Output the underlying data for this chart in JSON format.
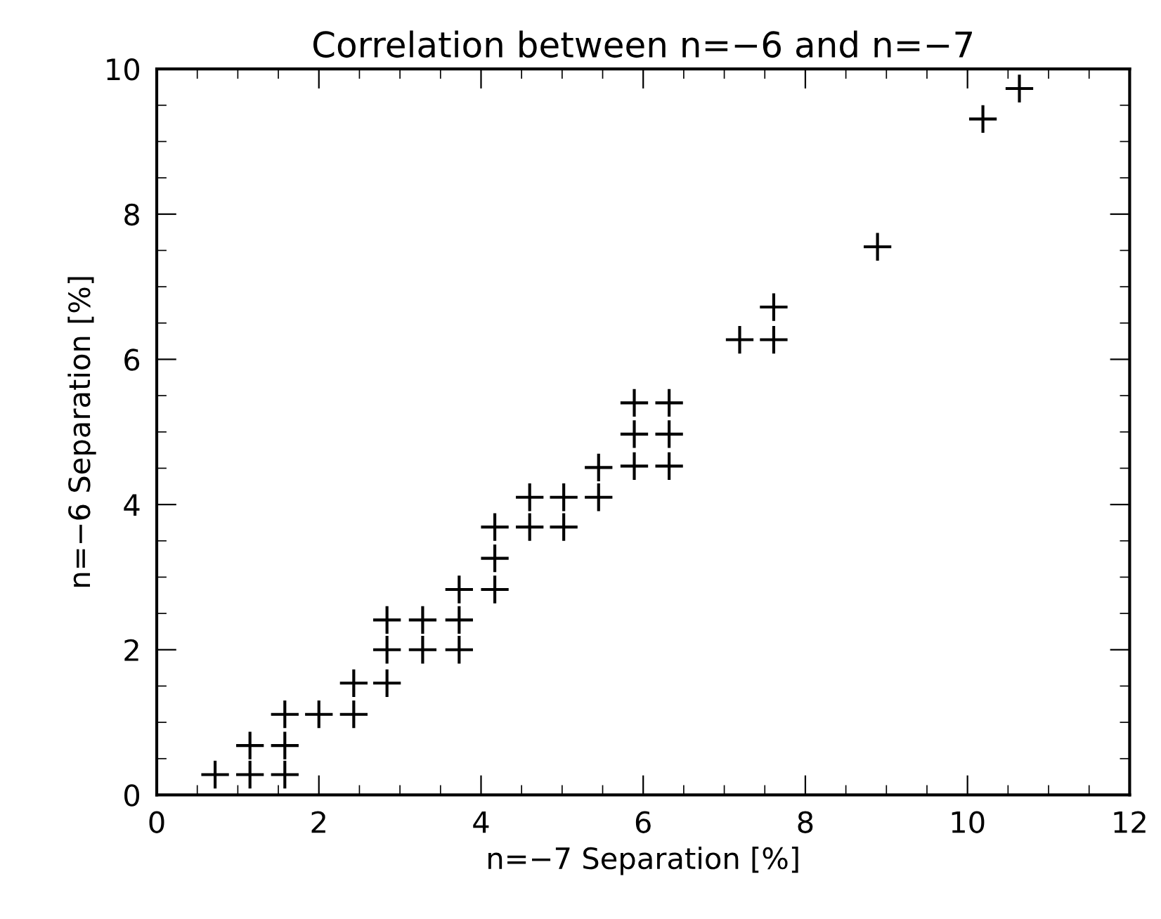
{
  "chart_data": {
    "type": "scatter",
    "title": "Correlation between n=−6 and n=−7",
    "xlabel": "n=−7 Separation [%]",
    "ylabel": "n=−6 Separation [%]",
    "x": [
      0.72,
      1.15,
      1.58,
      1.15,
      1.58,
      1.58,
      2.0,
      2.43,
      2.43,
      2.84,
      2.84,
      2.84,
      3.28,
      3.28,
      3.73,
      3.73,
      3.73,
      4.17,
      4.17,
      4.17,
      4.6,
      4.6,
      5.02,
      5.02,
      5.45,
      5.45,
      5.89,
      5.89,
      5.89,
      6.32,
      6.32,
      6.32,
      7.19,
      7.61,
      7.61,
      8.89,
      10.19,
      10.64
    ],
    "values": [
      0.28,
      0.28,
      0.28,
      0.68,
      0.68,
      1.11,
      1.11,
      1.11,
      1.54,
      1.54,
      2.0,
      2.41,
      2.0,
      2.41,
      2.0,
      2.41,
      2.83,
      2.83,
      3.26,
      3.69,
      3.69,
      4.1,
      3.69,
      4.1,
      4.1,
      4.51,
      4.53,
      4.97,
      5.4,
      4.53,
      4.97,
      5.4,
      6.27,
      6.27,
      6.72,
      7.55,
      9.31,
      9.73
    ],
    "color": "#000000",
    "marker": "cross",
    "xlim": [
      0,
      12
    ],
    "ylim": [
      0,
      10
    ],
    "xticks": [
      0,
      2,
      4,
      6,
      8,
      10,
      12
    ],
    "yticks": [
      0,
      2,
      4,
      6,
      8,
      10
    ],
    "grid": false
  }
}
